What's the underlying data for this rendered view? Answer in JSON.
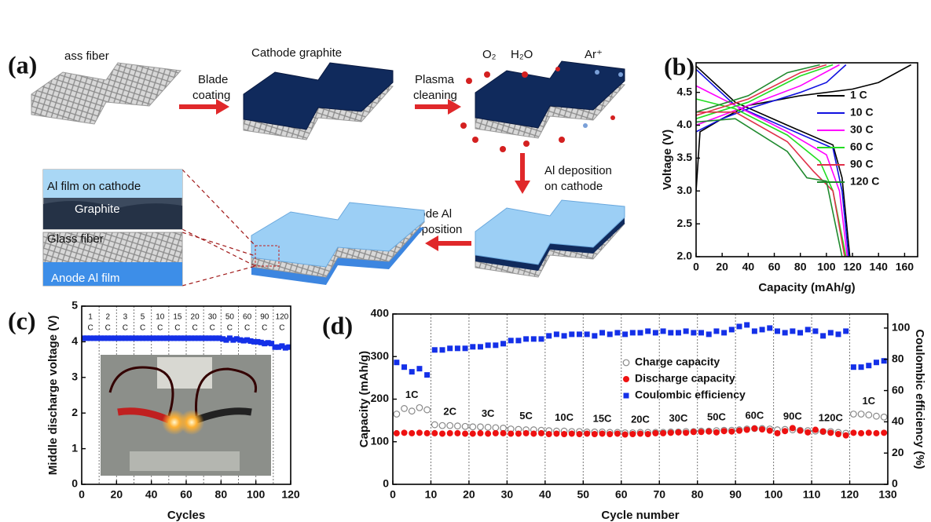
{
  "schematic": {
    "label": "(a)",
    "glass_fiber": "ass fiber",
    "cathode_graphite": "Cathode graphite",
    "blade_coating": [
      "Blade",
      "coating"
    ],
    "plasma_cleaning": [
      "Plasma",
      "cleaning"
    ],
    "gases": [
      "O₂",
      "H₂O",
      "Ar⁺"
    ],
    "al_deposition_cathode": [
      "Al deposition",
      "on cathode"
    ],
    "anode_al_deposition": [
      "Anode Al",
      "deposition"
    ],
    "inset_top": [
      "Al film on cathode",
      "Graphite"
    ],
    "inset_bottom": [
      "Glass fiber",
      "Anode Al film"
    ]
  },
  "chart_data": [
    {
      "type": "line",
      "panel": "(b)",
      "xlabel": "Capacity (mAh/g)",
      "ylabel": "Voltage (V)",
      "xlim": [
        0,
        170
      ],
      "xticks": [
        0,
        20,
        40,
        60,
        80,
        100,
        120,
        140,
        160
      ],
      "ylim": [
        2,
        4.95
      ],
      "yticks": [
        {
          "value": 2,
          "label": "2.0"
        },
        2.5,
        {
          "value": 3,
          "label": "3.0"
        },
        3.5,
        {
          "value": 4,
          "label": "4.0"
        },
        4.5
      ],
      "series": [
        {
          "name": "1 C",
          "color": "#000000",
          "x": [
            0,
            3,
            20,
            40,
            80,
            120,
            140,
            165,
            null,
            0,
            30,
            70,
            105,
            112,
            118
          ],
          "values": [
            3,
            3.9,
            4.1,
            4.3,
            4.45,
            4.55,
            4.65,
            4.92,
            null,
            4.9,
            4.35,
            4,
            3.7,
            3.2,
            2
          ]
        },
        {
          "name": "10 C",
          "color": "#1010e0",
          "x": [
            0,
            20,
            40,
            80,
            100,
            115,
            null,
            0,
            30,
            70,
            105,
            112,
            117
          ],
          "values": [
            3.9,
            4.1,
            4.25,
            4.5,
            4.65,
            4.92,
            null,
            4.85,
            4.3,
            3.95,
            3.65,
            3,
            2
          ]
        },
        {
          "name": "30 C",
          "color": "#ff00ff",
          "x": [
            0,
            20,
            40,
            80,
            110,
            null,
            0,
            30,
            70,
            100,
            110,
            116
          ],
          "values": [
            4,
            4.15,
            4.3,
            4.6,
            4.92,
            null,
            4.6,
            4.3,
            3.9,
            3.55,
            3,
            2
          ]
        },
        {
          "name": "60 C",
          "color": "#22dd22",
          "x": [
            0,
            40,
            80,
            105,
            null,
            0,
            30,
            70,
            95,
            105,
            115
          ],
          "values": [
            4.1,
            4.35,
            4.75,
            4.92,
            null,
            4.4,
            4.25,
            3.85,
            3.45,
            3,
            2
          ]
        },
        {
          "name": "90 C",
          "color": "#e0304a",
          "x": [
            0,
            40,
            80,
            100,
            null,
            0,
            30,
            70,
            90,
            105,
            114
          ],
          "values": [
            4.15,
            4.4,
            4.8,
            4.92,
            null,
            4.2,
            4.2,
            3.75,
            3.3,
            3,
            2
          ]
        },
        {
          "name": "120 C",
          "color": "#1f8a2e",
          "x": [
            0,
            40,
            70,
            95,
            null,
            0,
            30,
            70,
            85,
            100,
            112
          ],
          "values": [
            4.2,
            4.45,
            4.8,
            4.92,
            null,
            4.05,
            4.1,
            3.6,
            3.2,
            3.15,
            2
          ]
        }
      ]
    },
    {
      "type": "scatter",
      "panel": "(c)",
      "xlabel": "Cycles",
      "ylabel": "Middle discharge voltage (V)",
      "xlim": [
        0,
        120
      ],
      "xticks": [
        0,
        20,
        40,
        60,
        80,
        100,
        120
      ],
      "ylim": [
        0,
        5
      ],
      "yticks": [
        0,
        1,
        2,
        3,
        4,
        5
      ],
      "dividers": [
        10,
        20,
        30,
        40,
        50,
        60,
        70,
        80,
        90,
        100,
        110
      ],
      "annotations": [
        [
          "1",
          "C"
        ],
        [
          "2",
          "C"
        ],
        [
          "3",
          "C"
        ],
        [
          "5",
          "C"
        ],
        [
          "10",
          "C"
        ],
        [
          "15",
          "C"
        ],
        [
          "20",
          "C"
        ],
        [
          "30",
          "C"
        ],
        [
          "50",
          "C"
        ],
        [
          "60",
          "C"
        ],
        [
          "90",
          "C"
        ],
        [
          "120",
          "C"
        ]
      ],
      "series": [
        {
          "color": "#1430e8",
          "marker": "square",
          "x": [
            1,
            3,
            5,
            7,
            9,
            11,
            13,
            15,
            17,
            19,
            21,
            23,
            25,
            27,
            29,
            31,
            33,
            35,
            37,
            39,
            41,
            43,
            45,
            47,
            49,
            51,
            53,
            55,
            57,
            59,
            61,
            63,
            65,
            67,
            69,
            71,
            73,
            75,
            77,
            79,
            81,
            83,
            85,
            87,
            89,
            91,
            93,
            95,
            97,
            99,
            101,
            103,
            105,
            107,
            109,
            111,
            113,
            115,
            117,
            119
          ],
          "values": [
            4.1,
            4.1,
            4.1,
            4.1,
            4.1,
            4.1,
            4.1,
            4.1,
            4.1,
            4.1,
            4.1,
            4.1,
            4.1,
            4.1,
            4.1,
            4.1,
            4.1,
            4.1,
            4.1,
            4.1,
            4.1,
            4.1,
            4.1,
            4.1,
            4.1,
            4.1,
            4.1,
            4.1,
            4.1,
            4.1,
            4.1,
            4.1,
            4.1,
            4.1,
            4.1,
            4.1,
            4.1,
            4.1,
            4.1,
            4.1,
            4.08,
            4.05,
            4.1,
            4.05,
            4.08,
            4.05,
            4.03,
            4.05,
            4.02,
            4,
            4,
            3.98,
            3.95,
            3.97,
            3.95,
            3.85,
            3.85,
            3.88,
            3.83,
            3.85
          ]
        }
      ]
    },
    {
      "type": "scatter",
      "panel": "(d)",
      "xlabel": "Cycle number",
      "ylabel": "Capacity (mAh/g)",
      "y2label": "Coulombic efficiency (%)",
      "xlim": [
        0,
        130
      ],
      "xticks": [
        0,
        10,
        20,
        30,
        40,
        50,
        60,
        70,
        80,
        90,
        100,
        110,
        120,
        130
      ],
      "ylim": [
        0,
        400
      ],
      "yticks": [
        0,
        100,
        200,
        300,
        400
      ],
      "y2lim": [
        0,
        109
      ],
      "y2ticks": [
        0,
        20,
        40,
        60,
        80,
        100
      ],
      "dividers": [
        10,
        20,
        30,
        40,
        50,
        60,
        70,
        80,
        90,
        100,
        110,
        120
      ],
      "annotations": [
        "1C",
        "2C",
        "3C",
        "5C",
        "10C",
        "15C",
        "20C",
        "30C",
        "50C",
        "60C",
        "90C",
        "120C",
        "1C"
      ],
      "x": [
        1,
        3,
        5,
        7,
        9,
        11,
        13,
        15,
        17,
        19,
        21,
        23,
        25,
        27,
        29,
        31,
        33,
        35,
        37,
        39,
        41,
        43,
        45,
        47,
        49,
        51,
        53,
        55,
        57,
        59,
        61,
        63,
        65,
        67,
        69,
        71,
        73,
        75,
        77,
        79,
        81,
        83,
        85,
        87,
        89,
        91,
        93,
        95,
        97,
        99,
        101,
        103,
        105,
        107,
        109,
        111,
        113,
        115,
        117,
        119,
        121,
        123,
        125,
        127,
        129
      ],
      "series": [
        {
          "name": "Charge capacity",
          "color": "#888888",
          "marker": "circle-open",
          "values": [
            165,
            178,
            172,
            180,
            175,
            140,
            138,
            138,
            137,
            136,
            135,
            135,
            134,
            133,
            132,
            130,
            129,
            128,
            128,
            127,
            126,
            125,
            125,
            124,
            124,
            123,
            123,
            123,
            122,
            122,
            121,
            121,
            122,
            122,
            122,
            122,
            123,
            123,
            124,
            124,
            125,
            125,
            126,
            127,
            127,
            128,
            130,
            131,
            131,
            130,
            128,
            129,
            128,
            127,
            126,
            125,
            124,
            124,
            122,
            120,
            165,
            165,
            163,
            160,
            158
          ]
        },
        {
          "name": "Discharge capacity",
          "color": "#ee1111",
          "marker": "circle",
          "values": [
            120,
            121,
            120,
            121,
            120,
            120,
            119,
            120,
            120,
            119,
            119,
            120,
            119,
            120,
            120,
            119,
            119,
            120,
            119,
            120,
            118,
            119,
            118,
            119,
            118,
            119,
            118,
            119,
            118,
            119,
            117,
            118,
            119,
            118,
            120,
            120,
            121,
            122,
            121,
            123,
            123,
            124,
            122,
            125,
            124,
            126,
            128,
            131,
            129,
            126,
            120,
            125,
            132,
            126,
            122,
            128,
            124,
            121,
            118,
            115,
            121,
            120,
            121,
            120,
            121
          ]
        },
        {
          "name": "Coulombic efficiency",
          "color": "#1430e8",
          "marker": "square",
          "axis": "y2",
          "values": [
            78,
            75,
            72,
            74,
            70,
            86,
            86,
            87,
            87,
            87,
            88,
            88,
            89,
            89,
            90,
            92,
            92,
            93,
            93,
            93,
            95,
            96,
            95,
            96,
            96,
            96,
            95,
            97,
            96,
            97,
            96,
            97,
            97,
            98,
            97,
            98,
            97,
            97,
            98,
            97,
            97,
            96,
            98,
            97,
            99,
            101,
            102,
            98,
            99,
            100,
            98,
            97,
            98,
            97,
            99,
            98,
            95,
            97,
            96,
            98,
            75,
            75,
            76,
            78,
            79
          ]
        }
      ]
    }
  ]
}
